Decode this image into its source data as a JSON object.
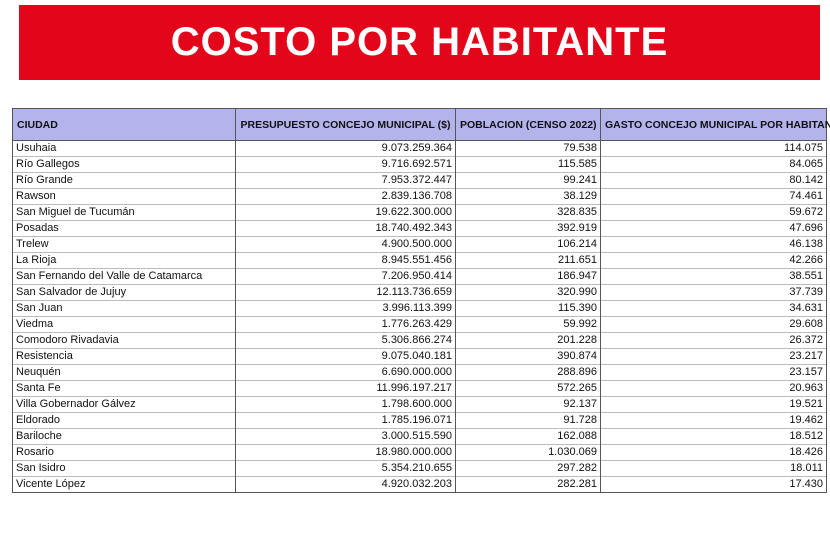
{
  "header": {
    "title": "COSTO POR HABITANTE"
  },
  "table": {
    "columns": [
      "CIUDAD",
      "PRESUPUESTO CONCEJO MUNICIPAL ($)",
      "POBLACION  (CENSO 2022)",
      "GASTO CONCEJO MUNICIPAL POR HABITANTE"
    ],
    "rows": [
      [
        "Usuhaia",
        "9.073.259.364",
        "79.538",
        "114.075"
      ],
      [
        "Río Gallegos",
        "9.716.692.571",
        "115.585",
        "84.065"
      ],
      [
        "Río Grande",
        "7.953.372.447",
        "99.241",
        "80.142"
      ],
      [
        "Rawson",
        "2.839.136.708",
        "38.129",
        "74.461"
      ],
      [
        "San Miguel de Tucumán",
        "19.622.300.000",
        "328.835",
        "59.672"
      ],
      [
        "Posadas",
        "18.740.492.343",
        "392.919",
        "47.696"
      ],
      [
        "Trelew",
        "4.900.500.000",
        "106.214",
        "46.138"
      ],
      [
        "La Rioja",
        "8.945.551.456",
        "211.651",
        "42.266"
      ],
      [
        "San Fernando del Valle de Catamarca",
        "7.206.950.414",
        "186.947",
        "38.551"
      ],
      [
        "San Salvador de Jujuy",
        "12.113.736.659",
        "320.990",
        "37.739"
      ],
      [
        "San Juan",
        "3.996.113.399",
        "115.390",
        "34.631"
      ],
      [
        "Viedma",
        "1.776.263.429",
        "59.992",
        "29.608"
      ],
      [
        "Comodoro Rivadavia",
        "5.306.866.274",
        "201.228",
        "26.372"
      ],
      [
        "Resistencia",
        "9.075.040.181",
        "390.874",
        "23.217"
      ],
      [
        "Neuquén",
        "6.690.000.000",
        "288.896",
        "23.157"
      ],
      [
        "Santa Fe",
        "11.996.197.217",
        "572.265",
        "20.963"
      ],
      [
        "Villa Gobernador Gálvez",
        "1.798.600.000",
        "92.137",
        "19.521"
      ],
      [
        "Eldorado",
        "1.785.196.071",
        "91.728",
        "19.462"
      ],
      [
        "Bariloche",
        "3.000.515.590",
        "162.088",
        "18.512"
      ],
      [
        "Rosario",
        "18.980.000.000",
        "1.030.069",
        "18.426"
      ],
      [
        "San Isidro",
        "5.354.210.655",
        "297.282",
        "18.011"
      ],
      [
        "Vicente López",
        "4.920.032.203",
        "282.281",
        "17.430"
      ]
    ]
  }
}
